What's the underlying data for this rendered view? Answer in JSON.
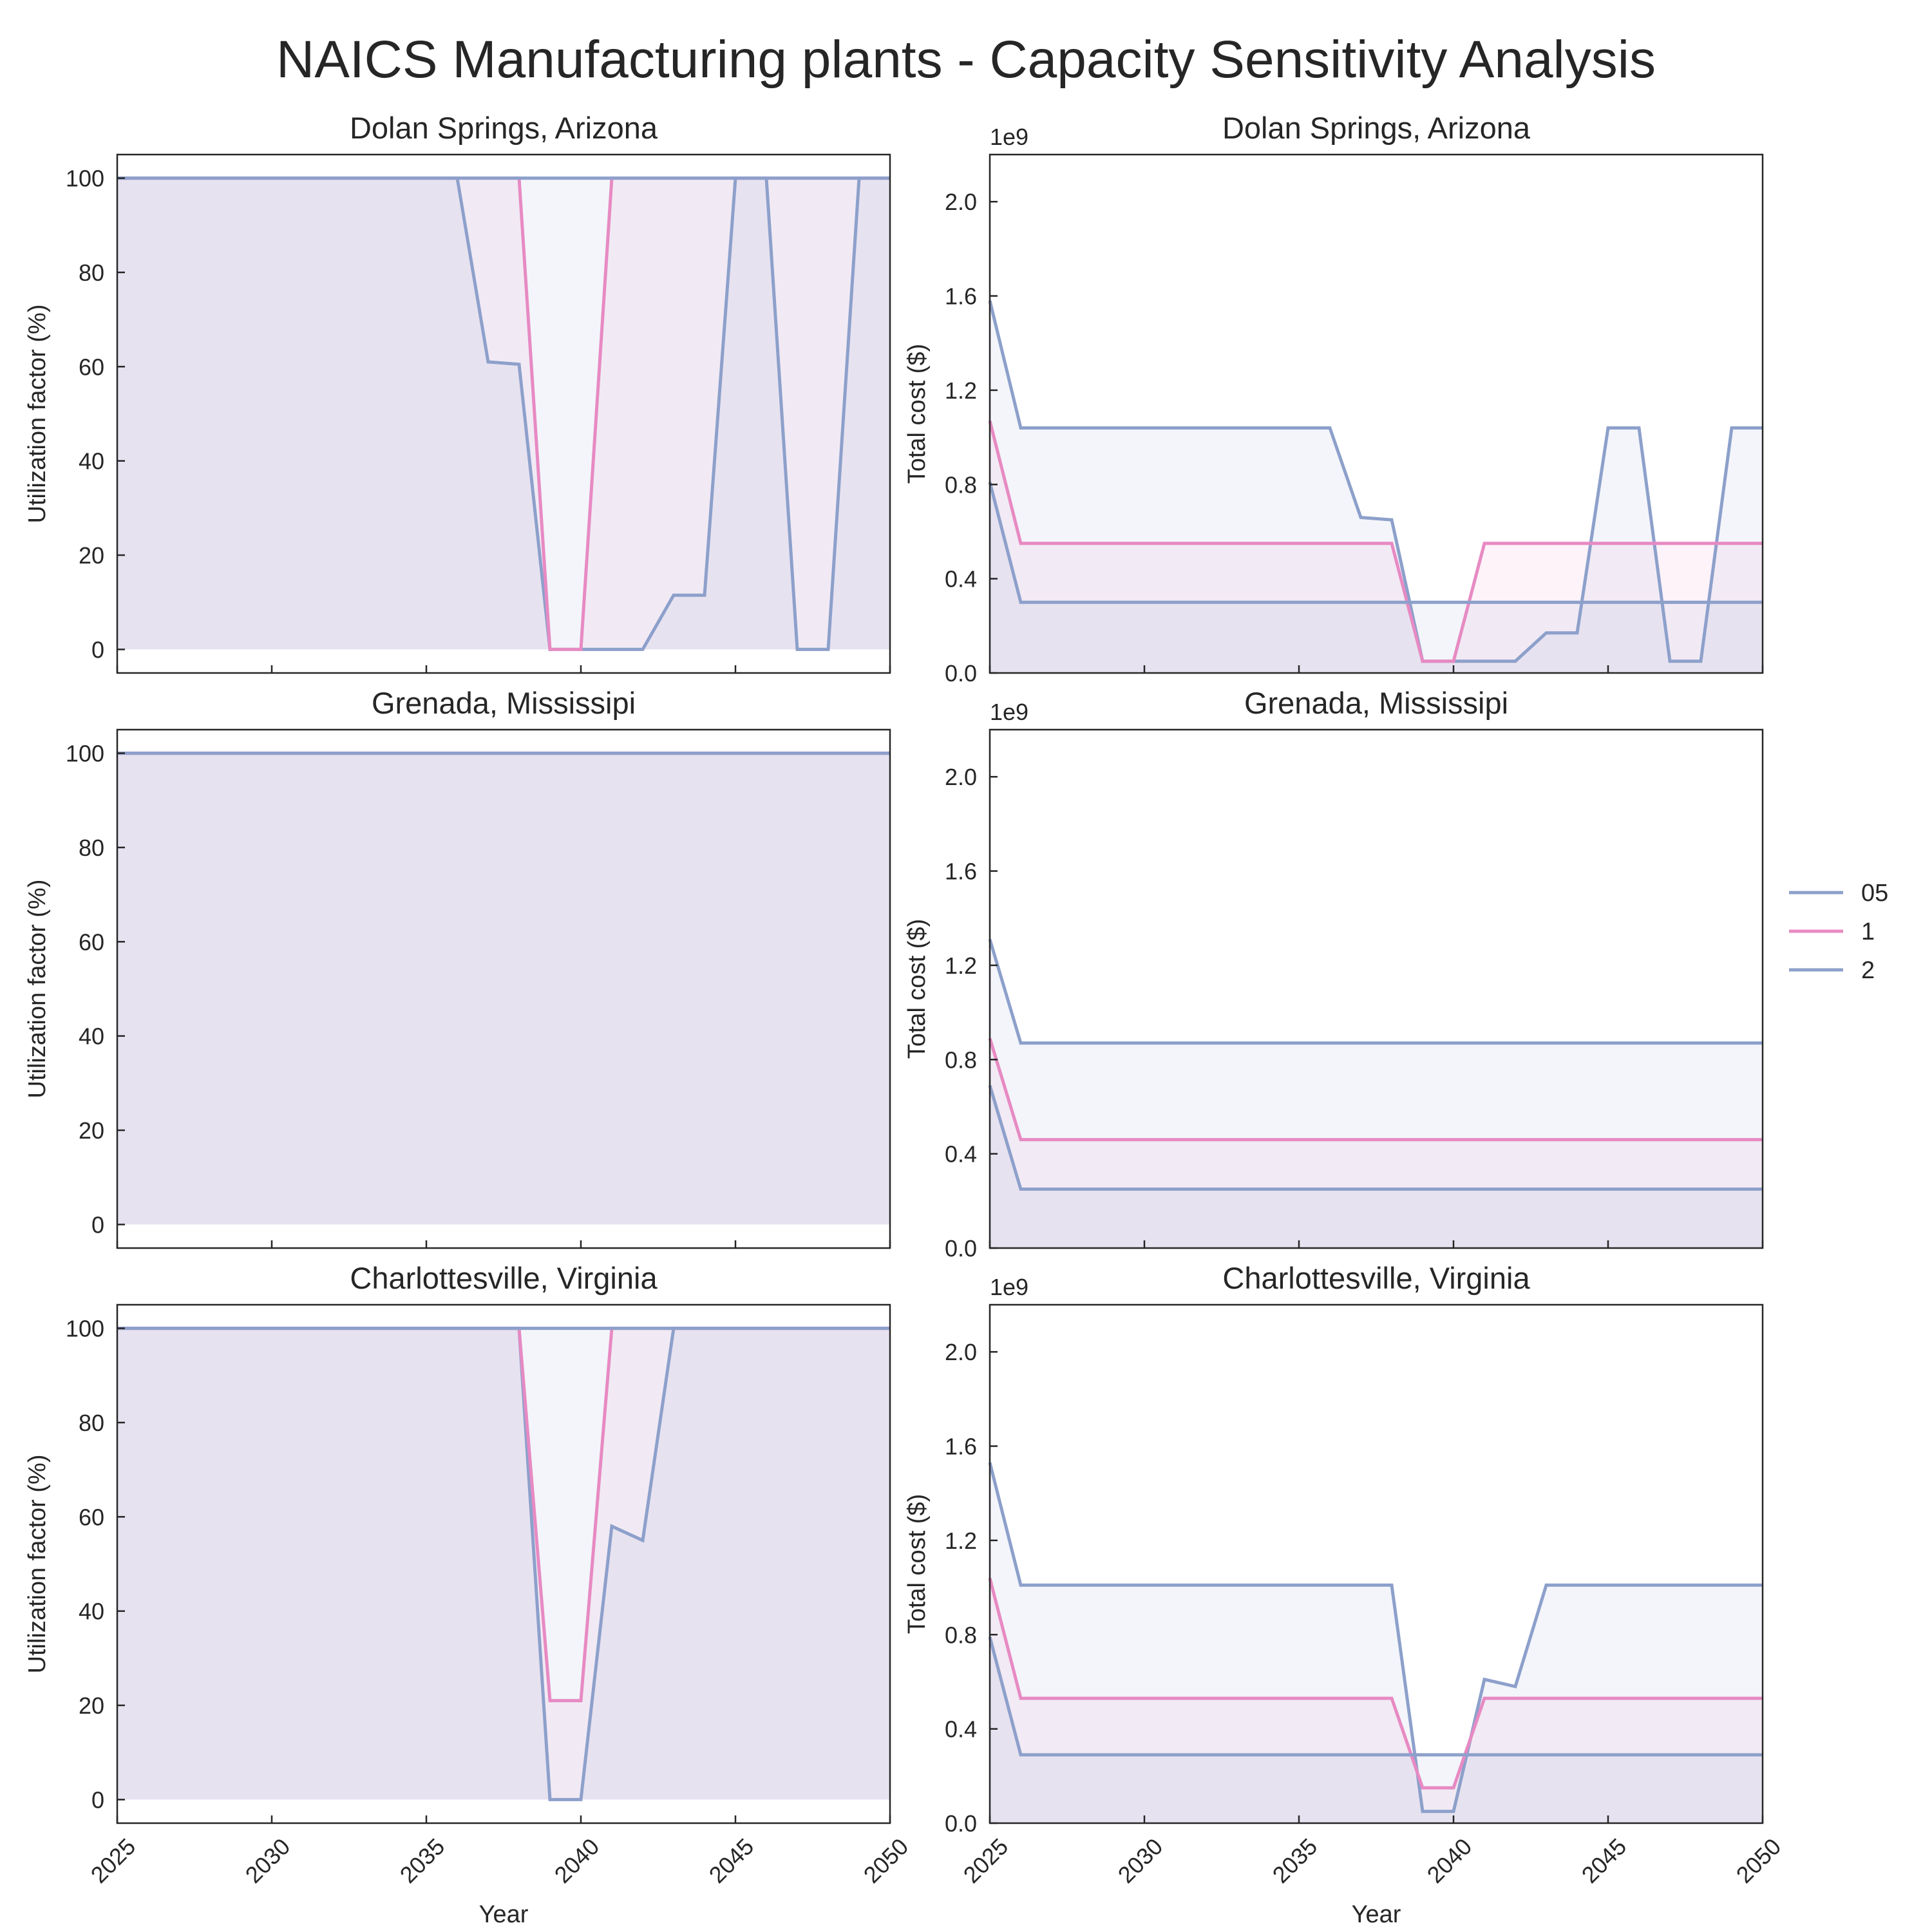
{
  "chart_data": {
    "type": "line",
    "title": "NAICS Manufacturing plants - Capacity Sensitivity Analysis",
    "xlabel": "Year",
    "x": [
      2025,
      2026,
      2027,
      2028,
      2029,
      2030,
      2031,
      2032,
      2033,
      2034,
      2035,
      2036,
      2037,
      2038,
      2039,
      2040,
      2041,
      2042,
      2043,
      2044,
      2045,
      2046,
      2047,
      2048,
      2049,
      2050
    ],
    "xlim": [
      2025,
      2050
    ],
    "xticks": [
      "2025",
      "2030",
      "2035",
      "2040",
      "2045",
      "2050"
    ],
    "legend": {
      "placement": "center-right",
      "entries": [
        {
          "label": "05",
          "color": "#8da0cb"
        },
        {
          "label": "1",
          "color": "#e78ac3"
        },
        {
          "label": "2",
          "color": "#8da0cb"
        }
      ]
    },
    "utilization": {
      "ylabel": "Utilization factor (%)",
      "ylim": [
        -5,
        105
      ],
      "yticks": [
        "0",
        "20",
        "40",
        "60",
        "80",
        "100"
      ],
      "yvals": [
        0,
        20,
        40,
        60,
        80,
        100
      ]
    },
    "cost": {
      "ylabel": "Total cost ($)",
      "offset_text": "1e9",
      "ylim": [
        0,
        2.2
      ],
      "yticks": [
        "0.0",
        "0.4",
        "0.8",
        "1.2",
        "1.6",
        "2.0"
      ],
      "yvals": [
        0,
        0.4,
        0.8,
        1.2,
        1.6,
        2.0
      ]
    },
    "plants": [
      {
        "name": "Dolan Springs, Arizona",
        "utilization": [
          {
            "name": "05",
            "values": [
              100,
              100,
              100,
              100,
              100,
              100,
              100,
              100,
              100,
              100,
              100,
              100,
              61,
              60.5,
              0,
              0,
              0,
              0,
              11.5,
              11.5,
              100,
              100,
              0,
              0,
              100,
              100
            ]
          },
          {
            "name": "1",
            "values": [
              100,
              100,
              100,
              100,
              100,
              100,
              100,
              100,
              100,
              100,
              100,
              100,
              100,
              100,
              0,
              0,
              100,
              100,
              100,
              100,
              100,
              100,
              100,
              100,
              100,
              100
            ]
          },
          {
            "name": "2",
            "values": [
              100,
              100,
              100,
              100,
              100,
              100,
              100,
              100,
              100,
              100,
              100,
              100,
              100,
              100,
              100,
              100,
              100,
              100,
              100,
              100,
              100,
              100,
              100,
              100,
              100,
              100
            ]
          }
        ],
        "cost": [
          {
            "name": "05",
            "values": [
              1.58,
              1.04,
              1.04,
              1.04,
              1.04,
              1.04,
              1.04,
              1.04,
              1.04,
              1.04,
              1.04,
              1.04,
              0.66,
              0.65,
              0.05,
              0.05,
              0.05,
              0.05,
              0.17,
              0.17,
              1.04,
              1.04,
              0.05,
              0.05,
              1.04,
              1.04
            ]
          },
          {
            "name": "1",
            "values": [
              1.07,
              0.55,
              0.55,
              0.55,
              0.55,
              0.55,
              0.55,
              0.55,
              0.55,
              0.55,
              0.55,
              0.55,
              0.55,
              0.55,
              0.05,
              0.05,
              0.55,
              0.55,
              0.55,
              0.55,
              0.55,
              0.55,
              0.55,
              0.55,
              0.55,
              0.55
            ]
          },
          {
            "name": "2",
            "values": [
              0.81,
              0.3,
              0.3,
              0.3,
              0.3,
              0.3,
              0.3,
              0.3,
              0.3,
              0.3,
              0.3,
              0.3,
              0.3,
              0.3,
              0.3,
              0.3,
              0.3,
              0.3,
              0.3,
              0.3,
              0.3,
              0.3,
              0.3,
              0.3,
              0.3,
              0.3
            ]
          }
        ]
      },
      {
        "name": "Grenada, Mississipi",
        "utilization": [
          {
            "name": "05",
            "values": [
              100,
              100,
              100,
              100,
              100,
              100,
              100,
              100,
              100,
              100,
              100,
              100,
              100,
              100,
              100,
              100,
              100,
              100,
              100,
              100,
              100,
              100,
              100,
              100,
              100,
              100
            ]
          },
          {
            "name": "1",
            "values": [
              100,
              100,
              100,
              100,
              100,
              100,
              100,
              100,
              100,
              100,
              100,
              100,
              100,
              100,
              100,
              100,
              100,
              100,
              100,
              100,
              100,
              100,
              100,
              100,
              100,
              100
            ]
          },
          {
            "name": "2",
            "values": [
              100,
              100,
              100,
              100,
              100,
              100,
              100,
              100,
              100,
              100,
              100,
              100,
              100,
              100,
              100,
              100,
              100,
              100,
              100,
              100,
              100,
              100,
              100,
              100,
              100,
              100
            ]
          }
        ],
        "cost": [
          {
            "name": "05",
            "values": [
              1.31,
              0.87,
              0.87,
              0.87,
              0.87,
              0.87,
              0.87,
              0.87,
              0.87,
              0.87,
              0.87,
              0.87,
              0.87,
              0.87,
              0.87,
              0.87,
              0.87,
              0.87,
              0.87,
              0.87,
              0.87,
              0.87,
              0.87,
              0.87,
              0.87,
              0.87
            ]
          },
          {
            "name": "1",
            "values": [
              0.89,
              0.46,
              0.46,
              0.46,
              0.46,
              0.46,
              0.46,
              0.46,
              0.46,
              0.46,
              0.46,
              0.46,
              0.46,
              0.46,
              0.46,
              0.46,
              0.46,
              0.46,
              0.46,
              0.46,
              0.46,
              0.46,
              0.46,
              0.46,
              0.46,
              0.46
            ]
          },
          {
            "name": "2",
            "values": [
              0.69,
              0.25,
              0.25,
              0.25,
              0.25,
              0.25,
              0.25,
              0.25,
              0.25,
              0.25,
              0.25,
              0.25,
              0.25,
              0.25,
              0.25,
              0.25,
              0.25,
              0.25,
              0.25,
              0.25,
              0.25,
              0.25,
              0.25,
              0.25,
              0.25,
              0.25
            ]
          }
        ]
      },
      {
        "name": "Charlottesville, Virginia",
        "utilization": [
          {
            "name": "05",
            "values": [
              100,
              100,
              100,
              100,
              100,
              100,
              100,
              100,
              100,
              100,
              100,
              100,
              100,
              100,
              0,
              0,
              58,
              55,
              100,
              100,
              100,
              100,
              100,
              100,
              100,
              100
            ]
          },
          {
            "name": "1",
            "values": [
              100,
              100,
              100,
              100,
              100,
              100,
              100,
              100,
              100,
              100,
              100,
              100,
              100,
              100,
              21,
              21,
              100,
              100,
              100,
              100,
              100,
              100,
              100,
              100,
              100,
              100
            ]
          },
          {
            "name": "2",
            "values": [
              100,
              100,
              100,
              100,
              100,
              100,
              100,
              100,
              100,
              100,
              100,
              100,
              100,
              100,
              100,
              100,
              100,
              100,
              100,
              100,
              100,
              100,
              100,
              100,
              100,
              100
            ]
          }
        ],
        "cost": [
          {
            "name": "05",
            "values": [
              1.53,
              1.01,
              1.01,
              1.01,
              1.01,
              1.01,
              1.01,
              1.01,
              1.01,
              1.01,
              1.01,
              1.01,
              1.01,
              1.01,
              0.05,
              0.05,
              0.61,
              0.58,
              1.01,
              1.01,
              1.01,
              1.01,
              1.01,
              1.01,
              1.01,
              1.01
            ]
          },
          {
            "name": "1",
            "values": [
              1.04,
              0.53,
              0.53,
              0.53,
              0.53,
              0.53,
              0.53,
              0.53,
              0.53,
              0.53,
              0.53,
              0.53,
              0.53,
              0.53,
              0.15,
              0.15,
              0.53,
              0.53,
              0.53,
              0.53,
              0.53,
              0.53,
              0.53,
              0.53,
              0.53,
              0.53
            ]
          },
          {
            "name": "2",
            "values": [
              0.79,
              0.29,
              0.29,
              0.29,
              0.29,
              0.29,
              0.29,
              0.29,
              0.29,
              0.29,
              0.29,
              0.29,
              0.29,
              0.29,
              0.29,
              0.29,
              0.29,
              0.29,
              0.29,
              0.29,
              0.29,
              0.29,
              0.29,
              0.29,
              0.29,
              0.29
            ]
          }
        ]
      }
    ]
  }
}
